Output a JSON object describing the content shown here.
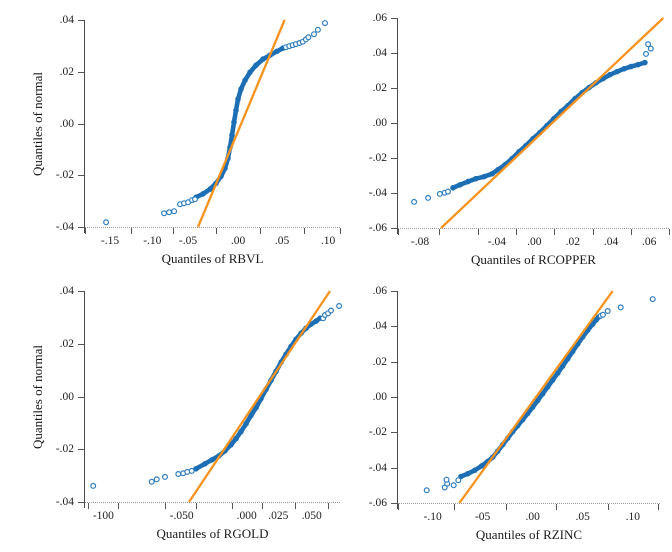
{
  "figure": {
    "background": "#ffffff",
    "band_color": "#1d6fb5",
    "point_color": "#2e7cbe",
    "ref_line_color": "#f6921e",
    "axis_color": "#4a4a4a",
    "text_color": "#222222",
    "shared_y_axis_title": "Quantiles of normal"
  },
  "chart_data": [
    {
      "type": "scatter",
      "id": "rbvl",
      "title": "",
      "xlabel": "Quantiles of RBVL",
      "ylabel": "Quantiles of normal",
      "x_range": [
        -0.174,
        0.116
      ],
      "y_range": [
        -0.04,
        0.04
      ],
      "x_tick_marks": [
        0,
        0.18,
        0.345,
        0.514,
        0.686,
        0.859,
        1
      ],
      "x_tick_labels": [
        {
          "text": "-.15",
          "pos": 0.098
        },
        {
          "text": "-.10",
          "pos": 0.264
        },
        {
          "text": "-.05",
          "pos": 0.404
        },
        {
          "text": ".00",
          "pos": 0.6
        },
        {
          "text": ".05",
          "pos": 0.773
        },
        {
          "text": ".10",
          "pos": 0.953
        }
      ],
      "y_tick_labels": [
        ".04",
        ".02",
        ".00",
        "-.02",
        "-.04"
      ],
      "ref_line": [
        [
          -0.0455,
          -0.04
        ],
        [
          0.053,
          0.04
        ]
      ],
      "band": [
        [
          -0.0477,
          -0.0285
        ],
        [
          -0.0398,
          -0.0272
        ],
        [
          -0.0318,
          -0.0254
        ],
        [
          -0.025,
          -0.0231
        ],
        [
          -0.0193,
          -0.0204
        ],
        [
          -0.0148,
          -0.0173
        ],
        [
          -0.0114,
          -0.0134
        ],
        [
          -0.0091,
          -0.0092
        ],
        [
          -0.0068,
          -0.0045
        ],
        [
          -0.0045,
          0.0005
        ],
        [
          -0.0023,
          0.0051
        ],
        [
          0,
          0.0094
        ],
        [
          0.0034,
          0.0133
        ],
        [
          0.008,
          0.0167
        ],
        [
          0.0136,
          0.0198
        ],
        [
          0.0205,
          0.0225
        ],
        [
          0.0284,
          0.0249
        ],
        [
          0.0364,
          0.0264
        ],
        [
          0.0443,
          0.0279
        ],
        [
          0.0511,
          0.0291
        ]
      ],
      "points": [
        [
          -0.15,
          -0.0382
        ],
        [
          -0.084,
          -0.0347
        ],
        [
          -0.0784,
          -0.0343
        ],
        [
          -0.0727,
          -0.0339
        ],
        [
          -0.0659,
          -0.0312
        ],
        [
          -0.0614,
          -0.0308
        ],
        [
          -0.0568,
          -0.0304
        ],
        [
          -0.0523,
          -0.0296
        ],
        [
          -0.0489,
          -0.0293
        ],
        [
          0.0545,
          0.0295
        ],
        [
          0.0583,
          0.0299
        ],
        [
          0.0622,
          0.0303
        ],
        [
          0.066,
          0.0307
        ],
        [
          0.0699,
          0.0311
        ],
        [
          0.0737,
          0.0316
        ],
        [
          0.0772,
          0.0325
        ],
        [
          0.0801,
          0.0333
        ],
        [
          0.0864,
          0.0345
        ],
        [
          0.0909,
          0.0362
        ],
        [
          0.0989,
          0.0388
        ]
      ]
    },
    {
      "type": "scatter",
      "id": "rcopper",
      "title": "",
      "xlabel": "Quantiles of RCOPPER",
      "ylabel": null,
      "x_range": [
        -0.071,
        0.0705
      ],
      "y_range": [
        -0.06,
        0.06
      ],
      "x_tick_marks": [
        0,
        0.152,
        0.294,
        0.435,
        0.577,
        0.718,
        0.859,
        1
      ],
      "x_tick_labels": [
        {
          "text": "-.08",
          "pos": 0.081
        },
        {
          "text": "-.04",
          "pos": 0.365
        },
        {
          "text": ".00",
          "pos": 0.503
        },
        {
          "text": ".02",
          "pos": 0.645
        },
        {
          "text": ".04",
          "pos": 0.786
        },
        {
          "text": ".06",
          "pos": 0.927
        }
      ],
      "y_tick_labels": [
        ".06",
        ".04",
        ".02",
        ".00",
        "-.02",
        "-.04",
        "-.06"
      ],
      "ref_line": [
        [
          -0.0485,
          -0.06
        ],
        [
          0.0675,
          0.06
        ]
      ],
      "band": [
        [
          -0.0423,
          -0.037
        ],
        [
          -0.0386,
          -0.0353
        ],
        [
          -0.0345,
          -0.0335
        ],
        [
          -0.0303,
          -0.0318
        ],
        [
          -0.0261,
          -0.0307
        ],
        [
          -0.0219,
          -0.029
        ],
        [
          -0.0188,
          -0.0267
        ],
        [
          -0.0151,
          -0.0238
        ],
        [
          -0.0115,
          -0.0204
        ],
        [
          -0.0078,
          -0.0164
        ],
        [
          -0.0042,
          -0.013
        ],
        [
          -0.0005,
          -0.009
        ],
        [
          0.0031,
          -0.0055
        ],
        [
          0.0068,
          -0.0015
        ],
        [
          0.0104,
          0.0025
        ],
        [
          0.0141,
          0.0065
        ],
        [
          0.0177,
          0.0099
        ],
        [
          0.0214,
          0.0139
        ],
        [
          0.0251,
          0.0173
        ],
        [
          0.0287,
          0.0202
        ],
        [
          0.0324,
          0.023
        ],
        [
          0.036,
          0.0253
        ],
        [
          0.0397,
          0.0276
        ],
        [
          0.0433,
          0.0293
        ],
        [
          0.047,
          0.031
        ],
        [
          0.0506,
          0.0322
        ],
        [
          0.0543,
          0.0333
        ],
        [
          0.0579,
          0.0345
        ]
      ],
      "points": [
        [
          -0.0626,
          -0.0451
        ],
        [
          -0.0553,
          -0.0428
        ],
        [
          -0.0491,
          -0.0405
        ],
        [
          -0.0466,
          -0.0398
        ],
        [
          -0.0449,
          -0.0392
        ],
        [
          0.0585,
          0.0395
        ],
        [
          0.061,
          0.0425
        ],
        [
          0.0596,
          0.045
        ]
      ]
    },
    {
      "type": "scatter",
      "id": "rgold",
      "title": "",
      "xlabel": "Quantiles of RGOLD",
      "ylabel": "Quantiles of normal",
      "x_range": [
        -0.1243,
        0.0717
      ],
      "y_range": [
        -0.04,
        0.04
      ],
      "x_tick_marks": [
        0.012,
        0.129,
        0.314,
        0.435,
        0.576,
        0.694,
        0.824,
        0.953
      ],
      "x_tick_labels": [
        {
          "text": "-100",
          "pos": 0.072
        },
        {
          "text": "-.050",
          "pos": 0.379
        },
        {
          "text": ".000",
          "pos": 0.634
        },
        {
          "text": ".025",
          "pos": 0.758
        },
        {
          "text": ".050",
          "pos": 0.889
        }
      ],
      "y_tick_labels": [
        ".04",
        ".02",
        ".00",
        "-.02",
        "-.04"
      ],
      "ref_line": [
        [
          -0.0444,
          -0.04
        ],
        [
          0.064,
          0.04
        ]
      ],
      "band": [
        [
          -0.039,
          -0.0274
        ],
        [
          -0.0321,
          -0.0255
        ],
        [
          -0.0267,
          -0.024
        ],
        [
          -0.0213,
          -0.0225
        ],
        [
          -0.0167,
          -0.0206
        ],
        [
          -0.0121,
          -0.0183
        ],
        [
          -0.0082,
          -0.016
        ],
        [
          -0.0044,
          -0.0133
        ],
        [
          -0.0005,
          -0.0103
        ],
        [
          0.0033,
          -0.0072
        ],
        [
          0.0072,
          -0.0042
        ],
        [
          0.011,
          -0.0008
        ],
        [
          0.0148,
          0.0027
        ],
        [
          0.0187,
          0.0061
        ],
        [
          0.0225,
          0.0095
        ],
        [
          0.0264,
          0.013
        ],
        [
          0.0302,
          0.016
        ],
        [
          0.0341,
          0.019
        ],
        [
          0.0379,
          0.0217
        ],
        [
          0.0418,
          0.024
        ],
        [
          0.0456,
          0.0259
        ],
        [
          0.0494,
          0.0274
        ],
        [
          0.0533,
          0.0286
        ],
        [
          0.0564,
          0.0297
        ]
      ],
      "points": [
        [
          -0.118,
          -0.0339
        ],
        [
          -0.073,
          -0.0323
        ],
        [
          -0.0692,
          -0.0314
        ],
        [
          -0.0628,
          -0.0305
        ],
        [
          -0.0526,
          -0.0294
        ],
        [
          -0.0488,
          -0.0291
        ],
        [
          -0.0457,
          -0.0286
        ],
        [
          -0.0423,
          -0.0282
        ],
        [
          0.0587,
          0.0297
        ],
        [
          0.0602,
          0.0309
        ],
        [
          0.0625,
          0.0316
        ],
        [
          0.0648,
          0.0326
        ],
        [
          0.071,
          0.0343
        ]
      ]
    },
    {
      "type": "scatter",
      "id": "rzinc",
      "title": "",
      "xlabel": "Quantiles of RZINC",
      "ylabel": null,
      "x_range": [
        -0.1347,
        0.1273
      ],
      "y_range": [
        -0.06,
        0.06
      ],
      "x_tick_marks": [
        0,
        0.215,
        0.413,
        0.604,
        0.8,
        0.991
      ],
      "x_tick_labels": [
        {
          "text": "-.10",
          "pos": 0.132
        },
        {
          "text": "-05",
          "pos": 0.323
        },
        {
          "text": ".00",
          "pos": 0.514
        },
        {
          "text": ".05",
          "pos": 0.705
        },
        {
          "text": ".10",
          "pos": 0.896
        }
      ],
      "y_tick_labels": [
        ".06",
        ".04",
        ".02",
        ".00",
        "-.02",
        "-.04",
        "-.06"
      ],
      "ref_line": [
        [
          -0.0733,
          -0.06
        ],
        [
          0.08,
          0.06
        ]
      ],
      "band": [
        [
          -0.0717,
          -0.045
        ],
        [
          -0.065,
          -0.0435
        ],
        [
          -0.058,
          -0.0415
        ],
        [
          -0.051,
          -0.039
        ],
        [
          -0.045,
          -0.0365
        ],
        [
          -0.04,
          -0.0341
        ],
        [
          -0.035,
          -0.0307
        ],
        [
          -0.03,
          -0.027
        ],
        [
          -0.025,
          -0.0233
        ],
        [
          -0.02,
          -0.0196
        ],
        [
          -0.015,
          -0.0162
        ],
        [
          -0.01,
          -0.0128
        ],
        [
          -0.005,
          -0.0093
        ],
        [
          0,
          -0.0057
        ],
        [
          0.005,
          -0.002
        ],
        [
          0.01,
          0.0018
        ],
        [
          0.015,
          0.0057
        ],
        [
          0.02,
          0.0096
        ],
        [
          0.025,
          0.0135
        ],
        [
          0.03,
          0.0175
        ],
        [
          0.035,
          0.0216
        ],
        [
          0.04,
          0.0258
        ],
        [
          0.045,
          0.03
        ],
        [
          0.05,
          0.034
        ],
        [
          0.055,
          0.0378
        ],
        [
          0.06,
          0.0412
        ],
        [
          0.0635,
          0.0437
        ],
        [
          0.066,
          0.0453
        ]
      ],
      "points": [
        [
          -0.106,
          -0.0528
        ],
        [
          -0.088,
          -0.0512
        ],
        [
          -0.0855,
          -0.049
        ],
        [
          -0.0862,
          -0.0468
        ],
        [
          -0.079,
          -0.05
        ],
        [
          -0.0744,
          -0.0471
        ],
        [
          0.068,
          0.046
        ],
        [
          0.0702,
          0.0466
        ],
        [
          0.075,
          0.0487
        ],
        [
          0.088,
          0.0507
        ],
        [
          0.12,
          0.0554
        ]
      ]
    }
  ]
}
